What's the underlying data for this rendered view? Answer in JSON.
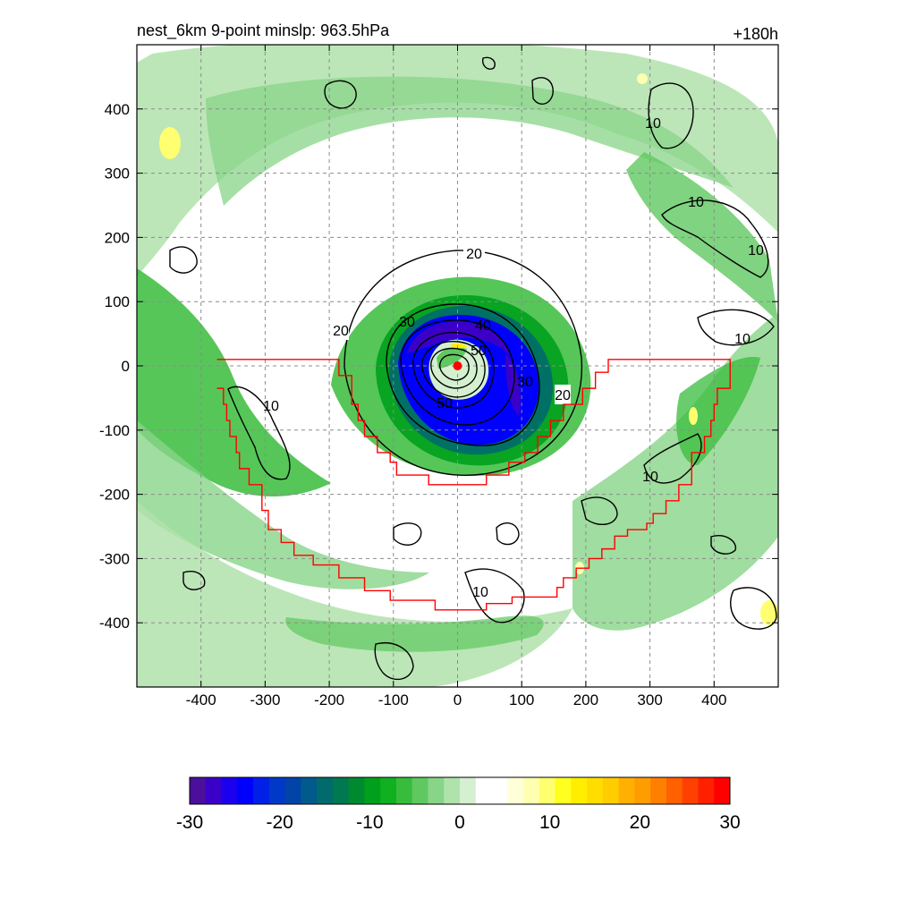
{
  "chart_data": {
    "type": "heatmap",
    "title_left": "nest_6km  9-point minslp: 963.5hPa",
    "title_right": "+180h",
    "xlim": [
      -500,
      500
    ],
    "ylim": [
      -500,
      500
    ],
    "x_ticks": [
      "-400",
      "-300",
      "-200",
      "-100",
      "0",
      "100",
      "200",
      "300",
      "400"
    ],
    "y_ticks": [
      "400",
      "300",
      "200",
      "100",
      "0",
      "-100",
      "-200",
      "-300",
      "-400"
    ],
    "tick_values": [
      -400,
      -300,
      -200,
      -100,
      0,
      100,
      200,
      300,
      400
    ],
    "grid": true,
    "grid_style": "dashed",
    "colorbar": {
      "min": -30,
      "max": 30,
      "labels": [
        "-30",
        "-20",
        "-10",
        "0",
        "10",
        "20",
        "30"
      ],
      "label_values": [
        -30,
        -20,
        -10,
        0,
        10,
        20,
        30
      ],
      "colors": [
        "#4b0f9c",
        "#3b00c8",
        "#1a00ee",
        "#0000ff",
        "#0020e8",
        "#0038c8",
        "#0044a8",
        "#005a8c",
        "#006a6c",
        "#007850",
        "#008a30",
        "#00a01c",
        "#10b020",
        "#38bc3c",
        "#60c860",
        "#88d488",
        "#b0e2ac",
        "#d4f0d0",
        "#ffffff",
        "#ffffff",
        "#ffffd8",
        "#ffffb0",
        "#ffff70",
        "#ffff20",
        "#ffee00",
        "#ffdd00",
        "#ffcc00",
        "#ffb000",
        "#ff9c00",
        "#ff8000",
        "#ff6000",
        "#ff4000",
        "#ff2000",
        "#ff0000"
      ]
    },
    "contours": [
      {
        "level": "10",
        "value": 10
      },
      {
        "level": "20",
        "value": 20
      },
      {
        "level": "30",
        "value": 30
      },
      {
        "level": "40",
        "value": 40
      },
      {
        "level": "50",
        "value": 50
      }
    ],
    "center_marker": {
      "x": 0,
      "y": 0,
      "color": "#ff0000"
    },
    "domain_outline_color": "#ff0000",
    "domain_outline": [
      [
        -375,
        10
      ],
      [
        -185,
        10
      ],
      [
        -185,
        -15
      ],
      [
        -165,
        -15
      ],
      [
        -165,
        -60
      ],
      [
        -155,
        -60
      ],
      [
        -155,
        -85
      ],
      [
        -145,
        -85
      ],
      [
        -145,
        -110
      ],
      [
        -125,
        -110
      ],
      [
        -125,
        -135
      ],
      [
        -105,
        -135
      ],
      [
        -105,
        -150
      ],
      [
        -95,
        -150
      ],
      [
        -95,
        -170
      ],
      [
        -45,
        -170
      ],
      [
        -45,
        -185
      ],
      [
        45,
        -185
      ],
      [
        45,
        -170
      ],
      [
        80,
        -170
      ],
      [
        80,
        -150
      ],
      [
        105,
        -150
      ],
      [
        105,
        -135
      ],
      [
        125,
        -135
      ],
      [
        125,
        -110
      ],
      [
        145,
        -110
      ],
      [
        145,
        -85
      ],
      [
        165,
        -85
      ],
      [
        165,
        -60
      ],
      [
        195,
        -60
      ],
      [
        195,
        -35
      ],
      [
        215,
        -35
      ],
      [
        215,
        -10
      ],
      [
        235,
        -10
      ],
      [
        235,
        10
      ],
      [
        425,
        10
      ],
      [
        425,
        -35
      ],
      [
        405,
        -35
      ],
      [
        405,
        -60
      ],
      [
        400,
        -60
      ],
      [
        400,
        -85
      ],
      [
        395,
        -85
      ],
      [
        395,
        -110
      ],
      [
        385,
        -110
      ],
      [
        385,
        -135
      ],
      [
        365,
        -135
      ],
      [
        365,
        -185
      ],
      [
        345,
        -185
      ],
      [
        345,
        -210
      ],
      [
        325,
        -210
      ],
      [
        325,
        -230
      ],
      [
        305,
        -230
      ],
      [
        305,
        -245
      ],
      [
        295,
        -245
      ],
      [
        295,
        -255
      ],
      [
        265,
        -255
      ],
      [
        265,
        -265
      ],
      [
        245,
        -265
      ],
      [
        245,
        -285
      ],
      [
        225,
        -285
      ],
      [
        225,
        -300
      ],
      [
        205,
        -300
      ],
      [
        205,
        -315
      ],
      [
        185,
        -315
      ],
      [
        185,
        -330
      ],
      [
        165,
        -330
      ],
      [
        165,
        -345
      ],
      [
        155,
        -345
      ],
      [
        155,
        -360
      ],
      [
        85,
        -360
      ],
      [
        85,
        -370
      ],
      [
        45,
        -370
      ],
      [
        45,
        -380
      ],
      [
        -35,
        -380
      ],
      [
        -35,
        -365
      ],
      [
        -105,
        -365
      ],
      [
        -105,
        -350
      ],
      [
        -145,
        -350
      ],
      [
        -145,
        -330
      ],
      [
        -185,
        -330
      ],
      [
        -185,
        -310
      ],
      [
        -225,
        -310
      ],
      [
        -225,
        -295
      ],
      [
        -255,
        -295
      ],
      [
        -255,
        -275
      ],
      [
        -275,
        -275
      ],
      [
        -275,
        -255
      ],
      [
        -295,
        -255
      ],
      [
        -295,
        -225
      ],
      [
        -305,
        -225
      ],
      [
        -305,
        -185
      ],
      [
        -325,
        -185
      ],
      [
        -325,
        -160
      ],
      [
        -340,
        -160
      ],
      [
        -340,
        -135
      ],
      [
        -345,
        -135
      ],
      [
        -345,
        -110
      ],
      [
        -355,
        -110
      ],
      [
        -355,
        -85
      ],
      [
        -360,
        -85
      ],
      [
        -360,
        -60
      ],
      [
        -365,
        -60
      ],
      [
        -365,
        -35
      ],
      [
        -375,
        -35
      ]
    ]
  }
}
